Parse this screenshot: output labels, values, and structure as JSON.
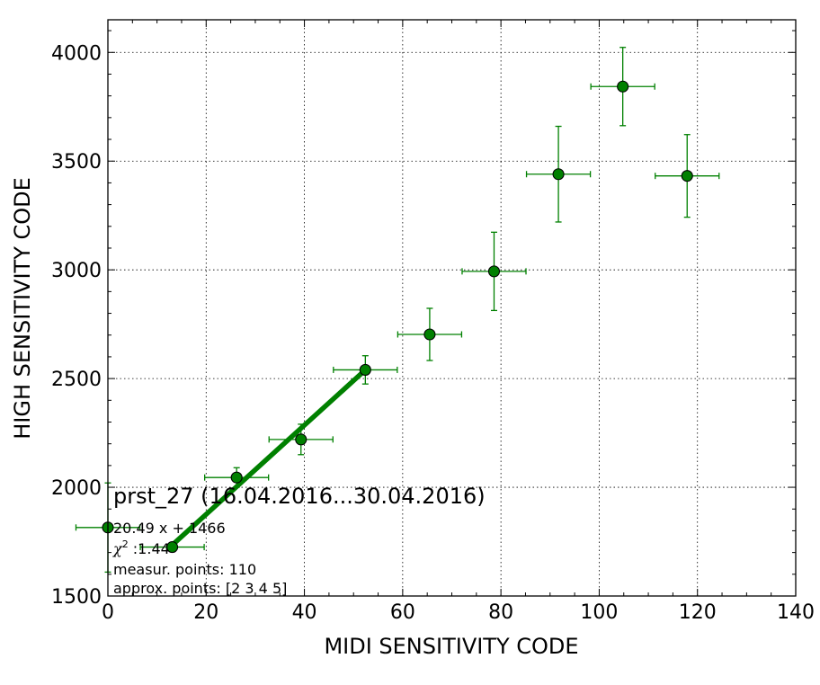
{
  "chart_data": {
    "type": "scatter",
    "xlabel": "MIDI SENSITIVITY CODE",
    "ylabel": "HIGH SENSITIVITY CODE",
    "xlim": [
      0,
      140
    ],
    "ylim": [
      1500,
      4150
    ],
    "x_ticks": [
      "0",
      "20",
      "40",
      "60",
      "80",
      "100",
      "120",
      "140"
    ],
    "y_ticks": [
      "1500",
      "2000",
      "2500",
      "3000",
      "3500",
      "4000"
    ],
    "x_tick_values": [
      0,
      20,
      40,
      60,
      80,
      100,
      120,
      140
    ],
    "y_tick_values": [
      1500,
      2000,
      2500,
      3000,
      3500,
      4000
    ],
    "grid": true,
    "colors": {
      "marker": "#008000",
      "errorbar": "#008000",
      "fit_line": "#008000"
    },
    "series": [
      {
        "points": [
          {
            "x": 0.0,
            "y": 1815,
            "xerr": 6.5,
            "yerr": 205
          },
          {
            "x": 13.1,
            "y": 1725,
            "xerr": 6.5,
            "yerr": 0
          },
          {
            "x": 26.2,
            "y": 2045,
            "xerr": 6.5,
            "yerr": 45
          },
          {
            "x": 39.3,
            "y": 2220,
            "xerr": 6.5,
            "yerr": 70
          },
          {
            "x": 52.4,
            "y": 2540,
            "xerr": 6.5,
            "yerr": 65
          },
          {
            "x": 65.5,
            "y": 2703,
            "xerr": 6.5,
            "yerr": 120
          },
          {
            "x": 78.6,
            "y": 2993,
            "xerr": 6.5,
            "yerr": 180
          },
          {
            "x": 91.7,
            "y": 3440,
            "xerr": 6.5,
            "yerr": 220
          },
          {
            "x": 104.8,
            "y": 3843,
            "xerr": 6.5,
            "yerr": 180
          },
          {
            "x": 117.9,
            "y": 3432,
            "xerr": 6.5,
            "yerr": 190
          }
        ]
      }
    ],
    "fit_line": {
      "slope": 20.49,
      "intercept": 1466,
      "x_start": 13.1,
      "x_end": 52.4
    },
    "annotations": {
      "title": "prst_27 (16.04.2016...30.04.2016)",
      "equation": "20.49 x + 1466",
      "chi_symbol": "χ",
      "chi_sup": "2",
      "chi_value": " :1.44",
      "measur_points": "measur. points: 110",
      "approx_points": "approx. points: [2 3 4 5]"
    }
  }
}
